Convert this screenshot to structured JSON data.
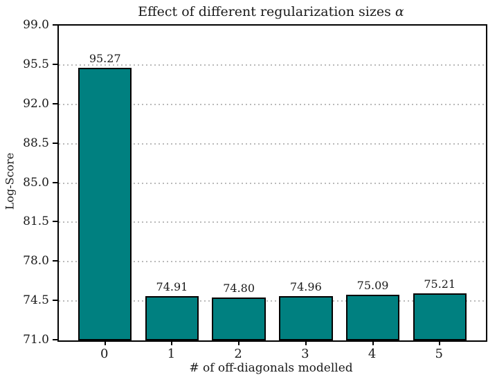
{
  "chart_data": {
    "type": "bar",
    "title": "Effect of different regularization sizes α",
    "title_text": "Effect of different regularization sizes ",
    "title_alpha": "α",
    "xlabel": "# of off-diagonals modelled",
    "ylabel": "Log-Score",
    "categories": [
      "0",
      "1",
      "2",
      "3",
      "4",
      "5"
    ],
    "values": [
      95.27,
      74.91,
      74.8,
      74.96,
      75.09,
      75.21
    ],
    "bar_labels": [
      "95.27",
      "74.91",
      "74.80",
      "74.96",
      "75.09",
      "75.21"
    ],
    "ylim": [
      71.0,
      99.0
    ],
    "xlim": [
      -0.69,
      5.69
    ],
    "bar_width_units": 0.8,
    "ytick_values": [
      71.0,
      74.5,
      78.0,
      81.5,
      85.0,
      88.5,
      92.0,
      95.5,
      99.0
    ],
    "ytick_labels": [
      "71.0",
      "74.5",
      "78.0",
      "81.5",
      "85.0",
      "88.5",
      "92.0",
      "95.5",
      "99.0"
    ],
    "grid": "horizontal dotted, drawn behind bars",
    "legend": "none",
    "colors": {
      "bar_fill": "#008080",
      "bar_edge": "#000000",
      "grid": "#b9b9b9",
      "text": "#1a1a1a",
      "background": "#ffffff"
    }
  }
}
